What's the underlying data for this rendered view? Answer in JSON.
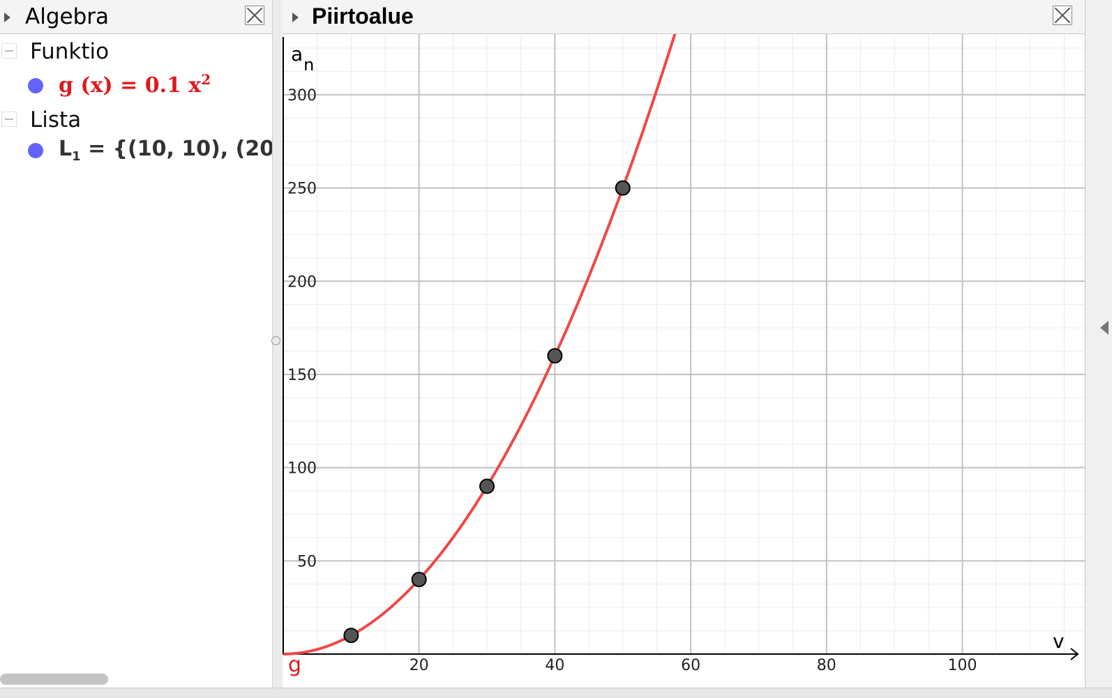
{
  "algebra": {
    "title": "Algebra",
    "categories": [
      {
        "label": "Funktio",
        "item_text": "g (x)  =  0.1 x",
        "item_superscript": "2"
      },
      {
        "label": "Lista",
        "item_text": "L",
        "item_subscript": "1",
        "item_rest": " = {(10, 10), (20,"
      }
    ]
  },
  "graphics": {
    "title": "Piirtoalue",
    "x_axis_label": "v",
    "y_axis_label": "a",
    "y_axis_label_sub": "n",
    "function_label": "g"
  },
  "colors": {
    "function": "#e0181c",
    "curve": "#f04848",
    "point_fill": "#555555",
    "object_dot": "#6363ff"
  },
  "chart_data": {
    "type": "scatter",
    "function": "0.1 x^2",
    "xlim": [
      0,
      117
    ],
    "ylim": [
      0,
      331
    ],
    "x_ticks": [
      20,
      40,
      60,
      80,
      100
    ],
    "y_ticks": [
      50,
      100,
      150,
      200,
      250,
      300
    ],
    "x_tick_labels": [
      "20",
      "40",
      "60",
      "80",
      "100"
    ],
    "y_tick_labels": [
      "50",
      "100",
      "150",
      "200",
      "250",
      "300"
    ],
    "points": [
      {
        "x": 10,
        "y": 10
      },
      {
        "x": 20,
        "y": 40
      },
      {
        "x": 30,
        "y": 90
      },
      {
        "x": 40,
        "y": 160
      },
      {
        "x": 50,
        "y": 250
      }
    ],
    "grid": true
  }
}
